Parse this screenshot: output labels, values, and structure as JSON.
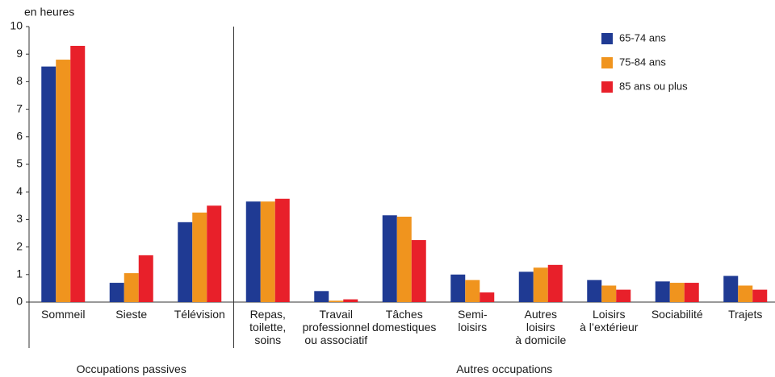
{
  "chart_data": {
    "type": "bar",
    "y_label": "en heures",
    "categories": [
      "Sommeil",
      "Sieste",
      "Télévision",
      "Repas,\ntoilette,\nsoins",
      "Travail\nprofessionnel\nou associatif",
      "Tâches\ndomestiques",
      "Semi-\nloisirs",
      "Autres\nloisirs\nà domicile",
      "Loisirs\nà l’extérieur",
      "Sociabilité",
      "Trajets"
    ],
    "groups": [
      {
        "label": "Occupations passives",
        "size": 3
      },
      {
        "label": "Autres occupations",
        "size": 8
      }
    ],
    "series": [
      {
        "name": "65-74 ans",
        "color": "#1f3a93",
        "values": [
          8.55,
          0.7,
          2.9,
          3.65,
          0.4,
          3.15,
          1.0,
          1.1,
          0.8,
          0.75,
          0.95
        ]
      },
      {
        "name": "75-84 ans",
        "color": "#f0941e",
        "values": [
          8.8,
          1.05,
          3.25,
          3.65,
          0.05,
          3.1,
          0.8,
          1.25,
          0.6,
          0.7,
          0.6
        ]
      },
      {
        "name": "85 ans ou plus",
        "color": "#e8202a",
        "values": [
          9.3,
          1.7,
          3.5,
          3.75,
          0.1,
          2.25,
          0.35,
          1.35,
          0.45,
          0.7,
          0.45
        ]
      }
    ],
    "ylim": [
      0,
      10
    ],
    "yticks": [
      0,
      1,
      2,
      3,
      4,
      5,
      6,
      7,
      8,
      9,
      10
    ],
    "grid": false,
    "legend": "top-right"
  }
}
